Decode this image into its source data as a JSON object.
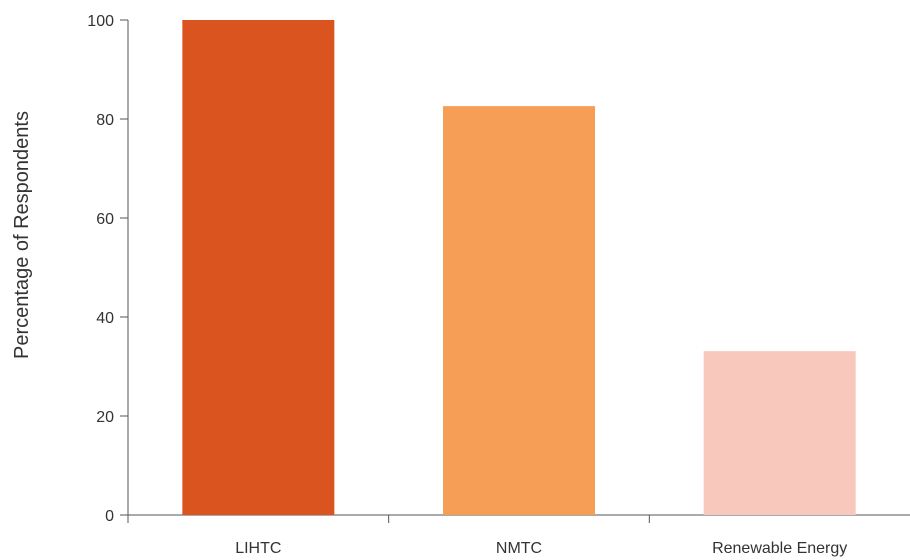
{
  "chart_data": {
    "type": "bar",
    "title": "",
    "xlabel": "",
    "ylabel": "Percentage of Respondents",
    "categories": [
      "LIHTC",
      "NMTC",
      "Renewable Energy"
    ],
    "values": [
      100,
      82.6,
      33.1
    ],
    "colors": [
      "#D9541E",
      "#F79E56",
      "#F9C8BD"
    ],
    "ylim": [
      0,
      100
    ],
    "yticks": [
      0,
      20,
      40,
      60,
      80,
      100
    ],
    "grid": false,
    "legend": "none"
  }
}
